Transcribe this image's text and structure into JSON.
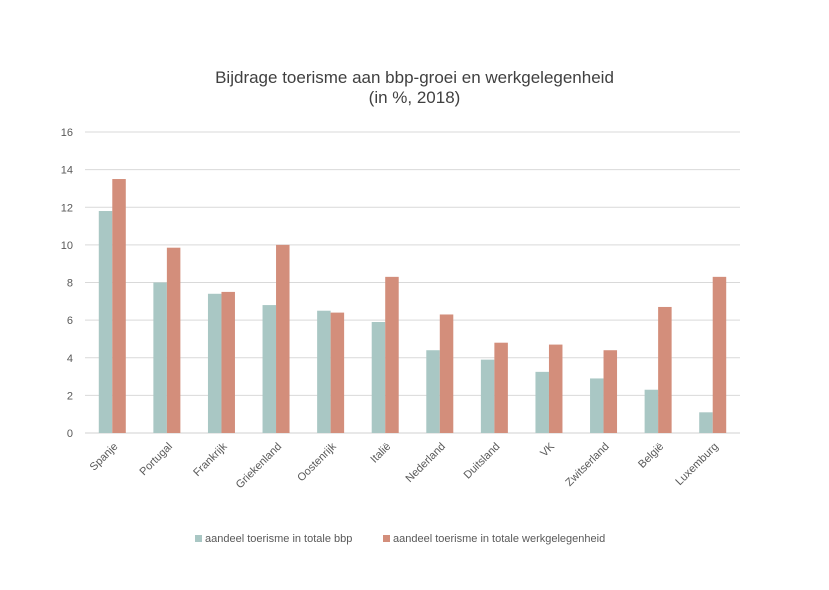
{
  "chart_data": {
    "type": "bar",
    "title": "Bijdrage toerisme aan bbp-groei en werkgelegenheid",
    "subtitle": "(in %, 2018)",
    "categories": [
      "Spanje",
      "Portugal",
      "Frankrijk",
      "Griekenland",
      "Oostenrijk",
      "Italië",
      "Nederland",
      "Duitsland",
      "VK",
      "Zwitserland",
      "België",
      "Luxemburg"
    ],
    "series": [
      {
        "name": "aandeel toerisme in totale bbp",
        "color": "#a9c7c4",
        "values": [
          11.8,
          8.0,
          7.4,
          6.8,
          6.5,
          5.9,
          4.4,
          3.9,
          3.25,
          2.9,
          2.3,
          1.1
        ]
      },
      {
        "name": "aandeel toerisme in totale werkgelegenheid",
        "color": "#d38e7b",
        "values": [
          13.5,
          9.85,
          7.5,
          10.0,
          6.4,
          8.3,
          6.3,
          4.8,
          4.7,
          4.4,
          6.7,
          8.3
        ]
      }
    ],
    "ylim": [
      0,
      16
    ],
    "yticks": [
      0,
      2,
      4,
      6,
      8,
      10,
      12,
      14,
      16
    ],
    "grid": true,
    "legend_position": "bottom"
  }
}
